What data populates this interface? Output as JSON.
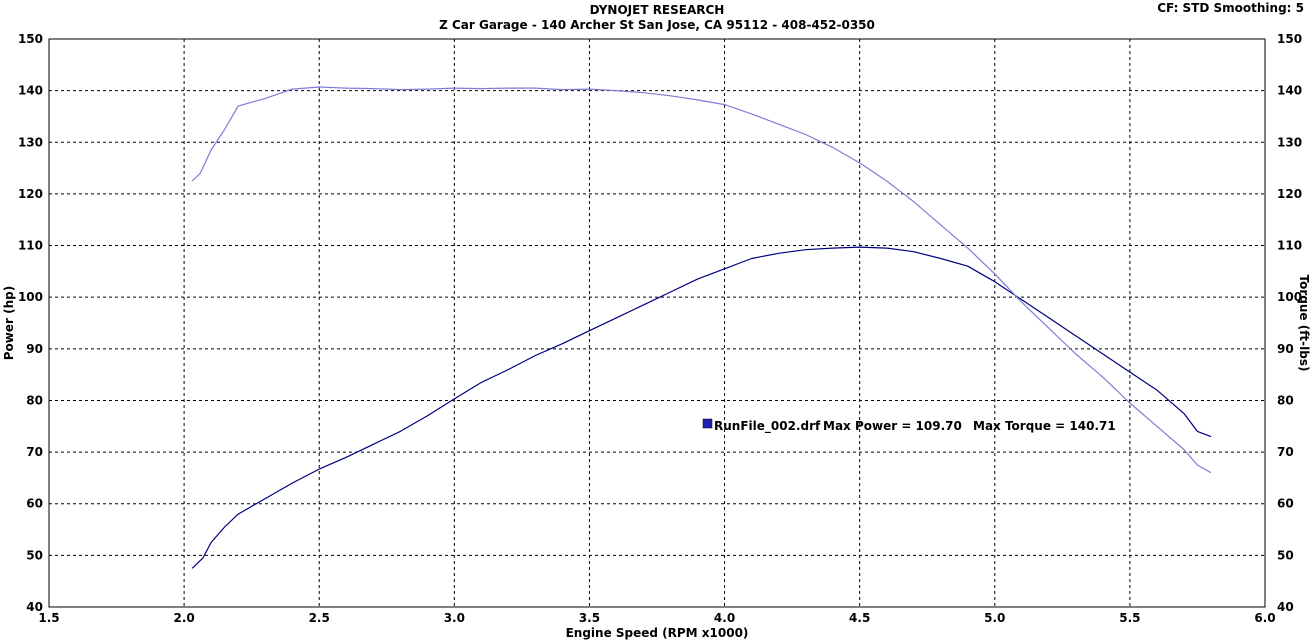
{
  "header": {
    "title": "DYNOJET RESEARCH",
    "subtitle": "Z Car Garage - 140 Archer St San Jose, CA 95112 - 408-452-0350",
    "settings": "CF: STD  Smoothing: 5"
  },
  "chart_data": {
    "type": "line",
    "title": "DYNOJET RESEARCH",
    "subtitle": "Z Car Garage - 140 Archer St San Jose, CA 95112 - 408-452-0350",
    "xlabel": "Engine Speed (RPM x1000)",
    "ylabel": "Power (hp)",
    "y2label": "Torque (ft-lbs)",
    "xlim": [
      1.5,
      6.0
    ],
    "ylim": [
      40,
      150
    ],
    "y2lim": [
      40,
      150
    ],
    "xticks": [
      "1.5",
      "2.0",
      "2.5",
      "3.0",
      "3.5",
      "4.0",
      "4.5",
      "5.0",
      "5.5",
      "6.0"
    ],
    "yticks": [
      "40",
      "50",
      "60",
      "70",
      "80",
      "90",
      "100",
      "110",
      "120",
      "130",
      "140",
      "150"
    ],
    "grid": true,
    "legend": {
      "run": "RunFile_002.drf",
      "max_power_label": "Max Power = 109.70",
      "max_torque_label": "Max Torque = 140.71",
      "placement": "center-right"
    },
    "series": [
      {
        "name": "Power",
        "color": "#000080",
        "x": [
          2.03,
          2.07,
          2.1,
          2.15,
          2.2,
          2.3,
          2.4,
          2.5,
          2.6,
          2.7,
          2.8,
          2.9,
          3.0,
          3.1,
          3.2,
          3.3,
          3.4,
          3.5,
          3.6,
          3.7,
          3.8,
          3.9,
          4.0,
          4.1,
          4.2,
          4.3,
          4.4,
          4.5,
          4.6,
          4.7,
          4.8,
          4.9,
          5.0,
          5.1,
          5.2,
          5.3,
          5.4,
          5.5,
          5.6,
          5.7,
          5.75,
          5.8
        ],
        "values": [
          47.5,
          49.5,
          52.5,
          55.5,
          58.0,
          61.0,
          64.0,
          66.7,
          69.0,
          71.5,
          74.0,
          77.0,
          80.3,
          83.5,
          86.0,
          88.7,
          91.0,
          93.5,
          96.0,
          98.5,
          101.0,
          103.5,
          105.5,
          107.5,
          108.5,
          109.2,
          109.5,
          109.7,
          109.5,
          108.8,
          107.5,
          106.0,
          103.0,
          99.5,
          96.0,
          92.5,
          89.0,
          85.5,
          82.0,
          77.5,
          74.0,
          73.0
        ]
      },
      {
        "name": "Torque",
        "color": "#7d7dd8",
        "x": [
          2.03,
          2.06,
          2.1,
          2.15,
          2.2,
          2.3,
          2.4,
          2.5,
          2.6,
          2.7,
          2.8,
          2.9,
          3.0,
          3.1,
          3.2,
          3.3,
          3.4,
          3.5,
          3.6,
          3.7,
          3.8,
          3.9,
          4.0,
          4.1,
          4.2,
          4.3,
          4.4,
          4.5,
          4.6,
          4.7,
          4.8,
          4.9,
          5.0,
          5.1,
          5.2,
          5.3,
          5.4,
          5.5,
          5.6,
          5.7,
          5.75,
          5.8
        ],
        "values": [
          122.5,
          124.0,
          128.5,
          132.5,
          137.0,
          138.5,
          140.3,
          140.7,
          140.5,
          140.4,
          140.2,
          140.3,
          140.5,
          140.4,
          140.5,
          140.5,
          140.2,
          140.3,
          140.0,
          139.6,
          139.0,
          138.2,
          137.3,
          135.5,
          133.5,
          131.5,
          129.0,
          126.0,
          122.5,
          118.5,
          114.0,
          109.5,
          104.5,
          99.0,
          94.0,
          89.0,
          84.5,
          79.5,
          75.0,
          70.5,
          67.5,
          66.0
        ]
      }
    ]
  }
}
